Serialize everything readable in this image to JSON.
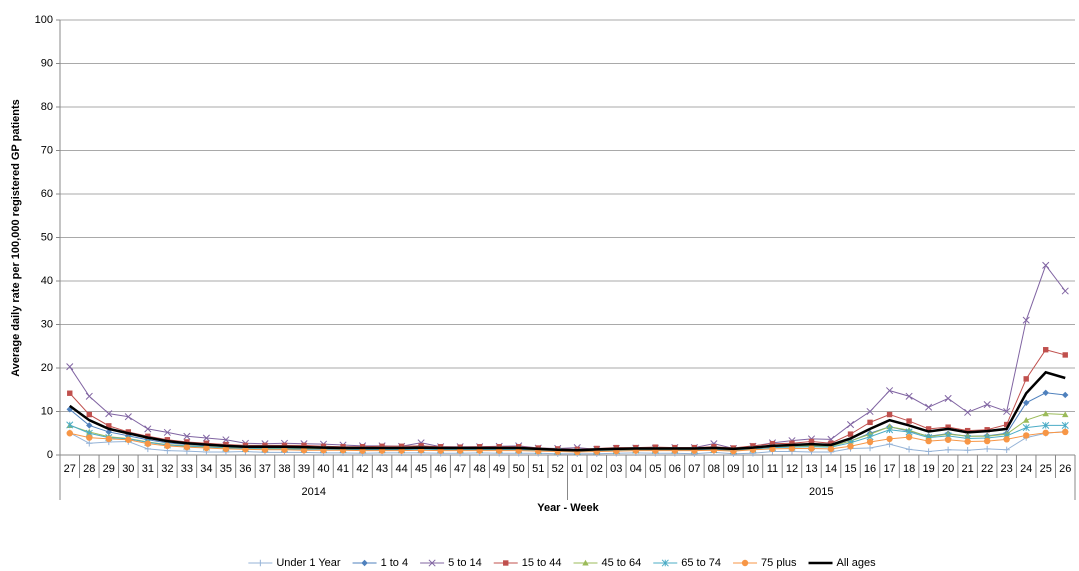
{
  "chart_data": {
    "type": "line",
    "y_label": "Average daily rate per 100,000 registered GP patients",
    "x_label": "Year - Week",
    "categories": [
      "27",
      "28",
      "29",
      "30",
      "31",
      "32",
      "33",
      "34",
      "35",
      "36",
      "37",
      "38",
      "39",
      "40",
      "41",
      "42",
      "43",
      "44",
      "45",
      "46",
      "47",
      "48",
      "49",
      "50",
      "51",
      "52",
      "01",
      "02",
      "03",
      "04",
      "05",
      "06",
      "07",
      "08",
      "09",
      "10",
      "11",
      "12",
      "13",
      "14",
      "15",
      "16",
      "17",
      "18",
      "19",
      "20",
      "21",
      "22",
      "23",
      "24",
      "25",
      "26"
    ],
    "x_groups": [
      {
        "label": "2014",
        "count": 26
      },
      {
        "label": "2015",
        "count": 26
      }
    ],
    "ylim": [
      0,
      100
    ],
    "yticks": [
      0,
      10,
      20,
      30,
      40,
      50,
      60,
      70,
      80,
      90,
      100
    ],
    "grid": true,
    "legend": "bottom",
    "series": [
      {
        "name": "Under 1 Year",
        "color": "#95b3d7",
        "marker": "plus",
        "values": [
          5.1,
          2.7,
          3.0,
          3.1,
          1.4,
          1.0,
          0.9,
          0.7,
          0.7,
          0.8,
          0.6,
          0.6,
          0.6,
          0.5,
          0.5,
          0.4,
          0.5,
          0.5,
          0.5,
          0.4,
          0.4,
          0.5,
          0.4,
          0.4,
          0.4,
          0.3,
          0.3,
          0.3,
          0.4,
          0.5,
          0.4,
          0.4,
          0.3,
          0.6,
          0.3,
          0.4,
          0.8,
          0.8,
          0.7,
          0.7,
          1.5,
          1.6,
          2.5,
          1.3,
          0.8,
          1.2,
          1.1,
          1.4,
          1.2,
          4.0,
          5.0,
          5.4
        ]
      },
      {
        "name": "1 to 4",
        "color": "#4f81bd",
        "marker": "diamond",
        "values": [
          10.5,
          6.8,
          5.3,
          4.4,
          3.5,
          2.8,
          2.4,
          2.1,
          1.9,
          1.7,
          1.7,
          1.6,
          1.5,
          1.5,
          1.4,
          1.4,
          1.3,
          1.3,
          1.4,
          1.3,
          1.3,
          1.3,
          1.3,
          1.3,
          1.1,
          1.0,
          0.9,
          1.1,
          1.2,
          1.3,
          1.3,
          1.3,
          1.3,
          1.4,
          1.2,
          1.5,
          2.0,
          2.2,
          2.3,
          2.1,
          3.2,
          5.0,
          6.5,
          5.5,
          4.3,
          4.9,
          4.3,
          4.4,
          5.0,
          12.0,
          14.3,
          13.8
        ]
      },
      {
        "name": "5 to 14",
        "color": "#8064a2",
        "marker": "x",
        "values": [
          20.3,
          13.5,
          9.5,
          8.8,
          6.0,
          5.2,
          4.3,
          3.9,
          3.5,
          2.7,
          2.6,
          2.7,
          2.6,
          2.5,
          2.3,
          2.1,
          2.1,
          2.0,
          2.8,
          1.9,
          1.9,
          1.9,
          2.0,
          2.1,
          1.6,
          1.5,
          1.7,
          1.3,
          1.5,
          1.6,
          1.6,
          1.7,
          1.7,
          2.6,
          1.5,
          2.0,
          2.8,
          3.3,
          3.7,
          3.6,
          7.0,
          10.0,
          14.8,
          13.5,
          11.0,
          13.0,
          9.8,
          11.6,
          10.0,
          31.0,
          43.6,
          37.7
        ]
      },
      {
        "name": "15 to 44",
        "color": "#c0504d",
        "marker": "square",
        "values": [
          14.2,
          9.3,
          6.7,
          5.3,
          4.3,
          3.5,
          3.0,
          2.7,
          2.4,
          2.2,
          2.2,
          2.2,
          2.2,
          2.0,
          1.9,
          1.9,
          2.0,
          2.0,
          2.1,
          1.9,
          1.8,
          1.9,
          1.9,
          1.9,
          1.6,
          1.4,
          1.3,
          1.5,
          1.7,
          1.7,
          1.8,
          1.7,
          1.7,
          1.9,
          1.6,
          2.1,
          2.6,
          2.7,
          3.1,
          2.7,
          4.8,
          7.5,
          9.3,
          7.8,
          6.0,
          6.4,
          5.6,
          5.8,
          7.0,
          17.5,
          24.2,
          23.0
        ]
      },
      {
        "name": "45 to 64",
        "color": "#9bbb59",
        "marker": "triangle",
        "values": [
          6.8,
          5.3,
          4.2,
          3.8,
          3.0,
          2.4,
          2.1,
          1.9,
          1.7,
          1.5,
          1.5,
          1.5,
          1.4,
          1.4,
          1.3,
          1.3,
          1.3,
          1.3,
          1.3,
          1.3,
          1.3,
          1.3,
          1.3,
          1.3,
          1.1,
          0.9,
          0.8,
          1.0,
          1.1,
          1.2,
          1.2,
          1.2,
          1.2,
          1.3,
          1.1,
          1.4,
          1.8,
          2.0,
          2.1,
          2.0,
          3.2,
          4.8,
          6.5,
          5.7,
          4.2,
          4.8,
          4.3,
          4.3,
          4.8,
          8.0,
          9.5,
          9.3
        ]
      },
      {
        "name": "65 to 74",
        "color": "#4bacc6",
        "marker": "star",
        "values": [
          6.9,
          5.0,
          4.0,
          3.7,
          2.9,
          2.3,
          2.0,
          1.8,
          1.6,
          1.5,
          1.4,
          1.4,
          1.3,
          1.3,
          1.2,
          1.2,
          1.2,
          1.2,
          1.3,
          1.2,
          1.2,
          1.2,
          1.2,
          1.2,
          1.0,
          0.9,
          0.8,
          0.9,
          1.0,
          1.1,
          1.1,
          1.1,
          1.1,
          1.2,
          1.0,
          1.3,
          1.7,
          1.8,
          1.9,
          1.8,
          2.8,
          4.2,
          5.8,
          5.3,
          4.0,
          4.4,
          3.8,
          3.9,
          4.4,
          6.3,
          6.8,
          6.8
        ]
      },
      {
        "name": "75 plus",
        "color": "#f79646",
        "marker": "circle",
        "values": [
          5.0,
          4.0,
          3.7,
          3.5,
          2.6,
          2.1,
          1.8,
          1.6,
          1.4,
          1.3,
          1.2,
          1.2,
          1.1,
          1.1,
          1.1,
          1.0,
          1.0,
          1.0,
          1.1,
          1.0,
          1.0,
          1.0,
          1.0,
          1.0,
          0.9,
          0.8,
          0.7,
          0.8,
          0.9,
          1.0,
          1.0,
          1.0,
          1.0,
          1.1,
          0.9,
          1.2,
          1.4,
          1.5,
          1.5,
          1.4,
          2.0,
          3.0,
          3.7,
          4.1,
          3.2,
          3.5,
          3.1,
          3.2,
          3.6,
          4.5,
          5.1,
          5.3
        ]
      },
      {
        "name": "All ages",
        "color": "#000000",
        "values": [
          11.3,
          8.0,
          6.0,
          5.0,
          4.0,
          3.2,
          2.7,
          2.4,
          2.1,
          1.9,
          1.9,
          1.9,
          1.8,
          1.7,
          1.6,
          1.6,
          1.6,
          1.6,
          1.7,
          1.6,
          1.6,
          1.6,
          1.6,
          1.6,
          1.4,
          1.2,
          1.1,
          1.3,
          1.4,
          1.5,
          1.5,
          1.5,
          1.5,
          1.6,
          1.4,
          1.7,
          2.1,
          2.3,
          2.5,
          2.3,
          3.8,
          6.0,
          8.0,
          6.8,
          5.4,
          6.0,
          5.2,
          5.5,
          6.0,
          14.2,
          19.0,
          17.7
        ]
      }
    ]
  }
}
